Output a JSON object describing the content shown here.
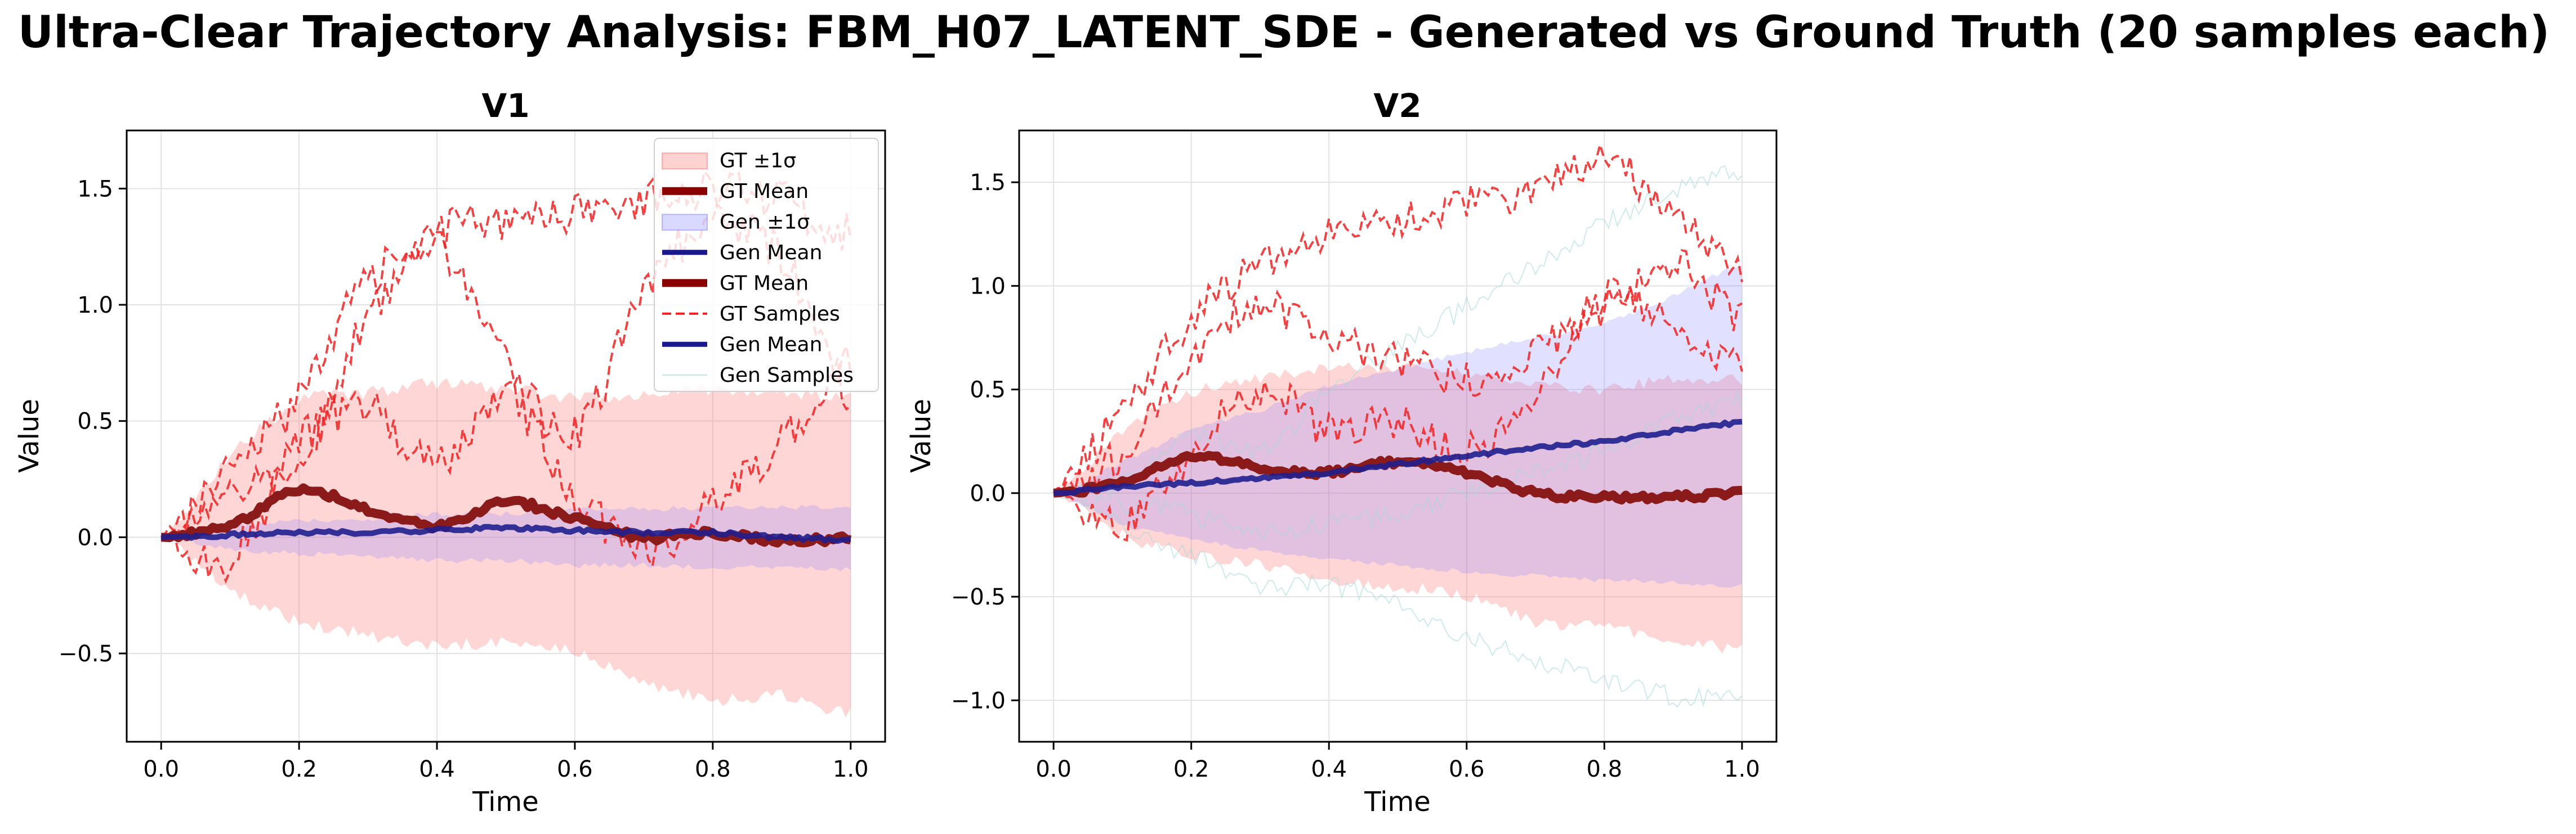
{
  "figure": {
    "title": "Ultra-Clear Trajectory Analysis: FBM_H07_LATENT_SDE - Generated vs Ground Truth (20 samples each)"
  },
  "legend": [
    {
      "label": "GT ±1σ",
      "kind": "patch",
      "color": "#ff6b6b"
    },
    {
      "label": "GT Mean",
      "kind": "line",
      "color": "#8b0000",
      "style": "thick"
    },
    {
      "label": "Gen ±1σ",
      "kind": "patch",
      "color": "#8080ff"
    },
    {
      "label": "Gen Mean",
      "kind": "line",
      "color": "#1a1a8c",
      "style": "medium"
    },
    {
      "label": "GT Mean",
      "kind": "line",
      "color": "#8b0000",
      "style": "thick"
    },
    {
      "label": "GT Samples",
      "kind": "line",
      "color": "#ee2222",
      "style": "dashed"
    },
    {
      "label": "Gen Mean",
      "kind": "line",
      "color": "#1a1a8c",
      "style": "medium"
    },
    {
      "label": "Gen Samples",
      "kind": "line",
      "color": "#bfe3e3",
      "style": "thin"
    }
  ],
  "colors": {
    "gt_band": "#ff6b6b",
    "gen_band": "#7777ff",
    "gt_mean": "#8b1a1a",
    "gen_mean": "#1f1f8f",
    "gt_sample": "#ee2222",
    "gen_sample": "#a8d8d8"
  },
  "chart_data": [
    {
      "type": "line",
      "title": "V1",
      "xlabel": "Time",
      "ylabel": "Value",
      "xlim": [
        -0.05,
        1.05
      ],
      "ylim": [
        -0.88,
        1.75
      ],
      "xticks": [
        0.0,
        0.2,
        0.4,
        0.6,
        0.8,
        1.0
      ],
      "xtick_labels": [
        "0.0",
        "0.2",
        "0.4",
        "0.6",
        "0.8",
        "1.0"
      ],
      "yticks": [
        -0.5,
        0.0,
        0.5,
        1.0,
        1.5
      ],
      "ytick_labels": [
        "−0.5",
        "0.0",
        "0.5",
        "1.0",
        "1.5"
      ],
      "grid": true,
      "legend_position": "upper right",
      "x": [
        0.0,
        0.1,
        0.2,
        0.3,
        0.4,
        0.5,
        0.6,
        0.7,
        0.8,
        0.9,
        1.0
      ],
      "series": [
        {
          "name": "GT Mean",
          "values": [
            0.0,
            0.05,
            0.2,
            0.12,
            0.05,
            0.15,
            0.08,
            0.0,
            0.02,
            -0.02,
            0.0
          ]
        },
        {
          "name": "Gen Mean",
          "values": [
            0.0,
            0.01,
            0.02,
            0.02,
            0.03,
            0.04,
            0.03,
            0.02,
            0.02,
            0.0,
            -0.01
          ]
        },
        {
          "name": "GT ±1σ upper",
          "values": [
            0.0,
            0.35,
            0.58,
            0.62,
            0.66,
            0.64,
            0.6,
            0.62,
            0.64,
            0.62,
            0.6
          ]
        },
        {
          "name": "GT ±1σ lower",
          "values": [
            0.0,
            -0.22,
            -0.36,
            -0.42,
            -0.47,
            -0.45,
            -0.5,
            -0.62,
            -0.7,
            -0.68,
            -0.76
          ]
        },
        {
          "name": "Gen ±1σ upper",
          "values": [
            0.0,
            0.05,
            0.07,
            0.08,
            0.1,
            0.1,
            0.12,
            0.12,
            0.13,
            0.13,
            0.13
          ]
        },
        {
          "name": "Gen ±1σ lower",
          "values": [
            0.0,
            -0.05,
            -0.07,
            -0.08,
            -0.1,
            -0.1,
            -0.12,
            -0.12,
            -0.13,
            -0.13,
            -0.14
          ]
        },
        {
          "name": "GT Samples",
          "values": [
            0.0,
            0.3,
            0.6,
            1.1,
            1.25,
            0.75,
            0.45,
            1.05,
            1.35,
            1.2,
            0.6
          ]
        },
        {
          "name": "GT Samples",
          "values": [
            0.0,
            0.2,
            0.3,
            0.95,
            1.3,
            1.35,
            1.4,
            1.45,
            1.5,
            1.45,
            1.3
          ]
        },
        {
          "name": "GT Samples",
          "values": [
            0.0,
            -0.1,
            0.4,
            0.55,
            0.3,
            0.6,
            0.2,
            -0.05,
            0.15,
            0.4,
            0.75
          ]
        }
      ]
    },
    {
      "type": "line",
      "title": "V2",
      "xlabel": "Time",
      "ylabel": "Value",
      "xlim": [
        -0.05,
        1.05
      ],
      "ylim": [
        -1.2,
        1.75
      ],
      "xticks": [
        0.0,
        0.2,
        0.4,
        0.6,
        0.8,
        1.0
      ],
      "xtick_labels": [
        "0.0",
        "0.2",
        "0.4",
        "0.6",
        "0.8",
        "1.0"
      ],
      "yticks": [
        -1.0,
        -0.5,
        0.0,
        0.5,
        1.0,
        1.5
      ],
      "ytick_labels": [
        "−1.0",
        "−0.5",
        "0.0",
        "0.5",
        "1.0",
        "1.5"
      ],
      "grid": true,
      "x": [
        0.0,
        0.1,
        0.2,
        0.3,
        0.4,
        0.5,
        0.6,
        0.7,
        0.8,
        0.9,
        1.0
      ],
      "series": [
        {
          "name": "GT Mean",
          "values": [
            0.0,
            0.05,
            0.18,
            0.12,
            0.1,
            0.15,
            0.1,
            0.0,
            -0.02,
            -0.02,
            0.0
          ]
        },
        {
          "name": "Gen Mean",
          "values": [
            0.0,
            0.03,
            0.05,
            0.07,
            0.1,
            0.14,
            0.18,
            0.22,
            0.25,
            0.3,
            0.34
          ]
        },
        {
          "name": "GT ±1σ upper",
          "values": [
            0.0,
            0.3,
            0.48,
            0.55,
            0.6,
            0.6,
            0.58,
            0.52,
            0.5,
            0.55,
            0.55
          ]
        },
        {
          "name": "GT ±1σ lower",
          "values": [
            0.0,
            -0.2,
            -0.3,
            -0.35,
            -0.42,
            -0.45,
            -0.5,
            -0.62,
            -0.65,
            -0.7,
            -0.76
          ]
        },
        {
          "name": "Gen ±1σ upper",
          "values": [
            0.0,
            0.15,
            0.3,
            0.4,
            0.52,
            0.6,
            0.68,
            0.75,
            0.82,
            0.95,
            1.1
          ]
        },
        {
          "name": "Gen ±1σ lower",
          "values": [
            0.0,
            -0.15,
            -0.22,
            -0.28,
            -0.32,
            -0.35,
            -0.38,
            -0.4,
            -0.42,
            -0.43,
            -0.45
          ]
        },
        {
          "name": "GT Samples",
          "values": [
            0.0,
            0.4,
            0.85,
            1.1,
            1.25,
            1.3,
            1.4,
            1.45,
            1.6,
            1.35,
            1.1
          ]
        },
        {
          "name": "GT Samples",
          "values": [
            0.0,
            0.2,
            0.65,
            0.9,
            0.75,
            0.65,
            0.55,
            0.7,
            0.9,
            1.1,
            0.85
          ]
        },
        {
          "name": "GT Samples",
          "values": [
            0.0,
            -0.15,
            0.2,
            0.5,
            0.3,
            0.35,
            0.2,
            0.5,
            0.95,
            0.8,
            0.6
          ]
        },
        {
          "name": "Gen Samples",
          "values": [
            0.0,
            0.05,
            0.3,
            0.2,
            0.5,
            0.7,
            0.9,
            1.1,
            1.3,
            1.45,
            1.55
          ]
        },
        {
          "name": "Gen Samples",
          "values": [
            0.0,
            -0.15,
            -0.3,
            -0.45,
            -0.45,
            -0.55,
            -0.7,
            -0.8,
            -0.9,
            -0.98,
            -1.0
          ]
        },
        {
          "name": "Gen Samples",
          "values": [
            0.0,
            -0.05,
            -0.1,
            -0.2,
            -0.15,
            -0.1,
            0.0,
            0.1,
            0.2,
            0.35,
            0.45
          ]
        }
      ]
    }
  ]
}
